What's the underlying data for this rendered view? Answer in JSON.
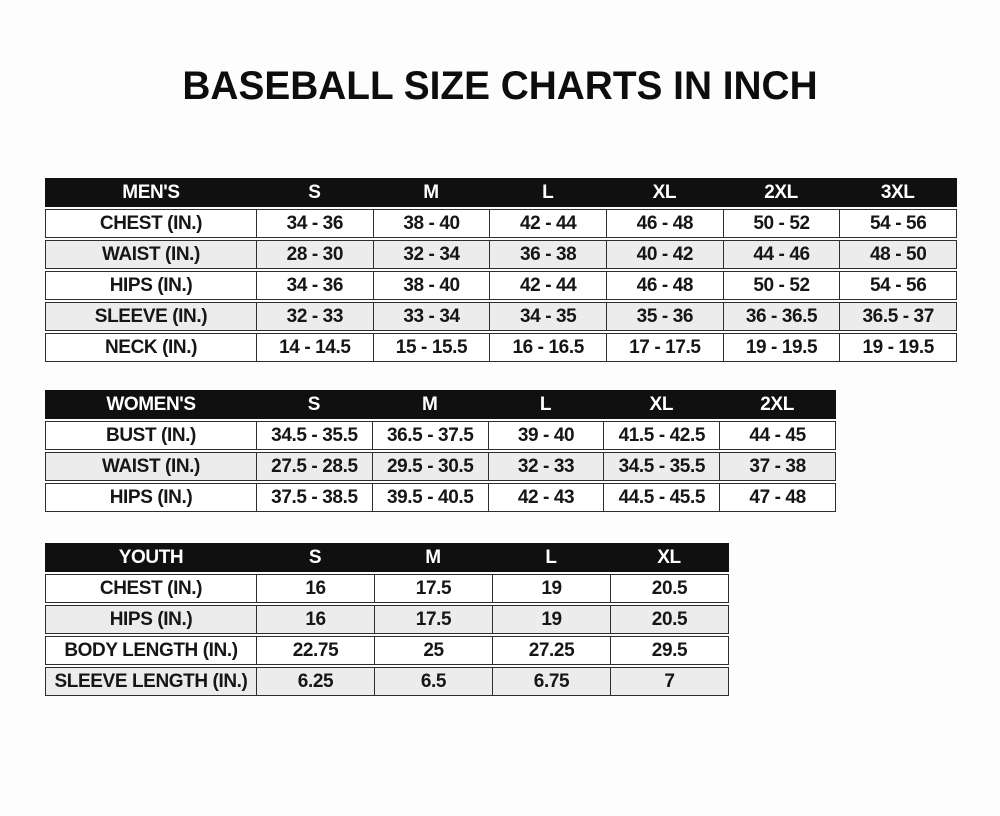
{
  "page": {
    "title": "BASEBALL SIZE CHARTS IN INCH"
  },
  "colors": {
    "header_bg": "#101010",
    "header_text": "#ffffff",
    "alt_row_bg": "#ececec",
    "border": "#2e2e2e",
    "text": "#161616",
    "page_bg": "#fdfdfd"
  },
  "chart_data": [
    {
      "type": "table",
      "name": "MEN'S",
      "columns": [
        "S",
        "M",
        "L",
        "XL",
        "2XL",
        "3XL"
      ],
      "rows": [
        {
          "label": "CHEST (IN.)",
          "values": [
            "34 - 36",
            "38 - 40",
            "42 - 44",
            "46 - 48",
            "50 - 52",
            "54 - 56"
          ]
        },
        {
          "label": "WAIST (IN.)",
          "values": [
            "28 - 30",
            "32 - 34",
            "36 - 38",
            "40 - 42",
            "44 - 46",
            "48 - 50"
          ]
        },
        {
          "label": "HIPS (IN.)",
          "values": [
            "34 - 36",
            "38 - 40",
            "42 - 44",
            "46 - 48",
            "50 - 52",
            "54 - 56"
          ]
        },
        {
          "label": "SLEEVE (IN.)",
          "values": [
            "32 - 33",
            "33 - 34",
            "34 - 35",
            "35 - 36",
            "36 - 36.5",
            "36.5 - 37"
          ]
        },
        {
          "label": "NECK (IN.)",
          "values": [
            "14 - 14.5",
            "15 - 15.5",
            "16 - 16.5",
            "17 - 17.5",
            "19 - 19.5",
            "19 - 19.5"
          ]
        }
      ]
    },
    {
      "type": "table",
      "name": "WOMEN'S",
      "columns": [
        "S",
        "M",
        "L",
        "XL",
        "2XL"
      ],
      "rows": [
        {
          "label": "BUST (IN.)",
          "values": [
            "34.5 - 35.5",
            "36.5 - 37.5",
            "39 - 40",
            "41.5 - 42.5",
            "44 - 45"
          ]
        },
        {
          "label": "WAIST (IN.)",
          "values": [
            "27.5 - 28.5",
            "29.5 - 30.5",
            "32 - 33",
            "34.5 - 35.5",
            "37 - 38"
          ]
        },
        {
          "label": "HIPS (IN.)",
          "values": [
            "37.5 - 38.5",
            "39.5 - 40.5",
            "42 - 43",
            "44.5 - 45.5",
            "47 - 48"
          ]
        }
      ]
    },
    {
      "type": "table",
      "name": "YOUTH",
      "columns": [
        "S",
        "M",
        "L",
        "XL"
      ],
      "rows": [
        {
          "label": "CHEST (IN.)",
          "values": [
            "16",
            "17.5",
            "19",
            "20.5"
          ]
        },
        {
          "label": "HIPS (IN.)",
          "values": [
            "16",
            "17.5",
            "19",
            "20.5"
          ]
        },
        {
          "label": "BODY LENGTH (IN.)",
          "values": [
            "22.75",
            "25",
            "27.25",
            "29.5"
          ]
        },
        {
          "label": "SLEEVE LENGTH (IN.)",
          "values": [
            "6.25",
            "6.5",
            "6.75",
            "7"
          ]
        }
      ]
    }
  ]
}
